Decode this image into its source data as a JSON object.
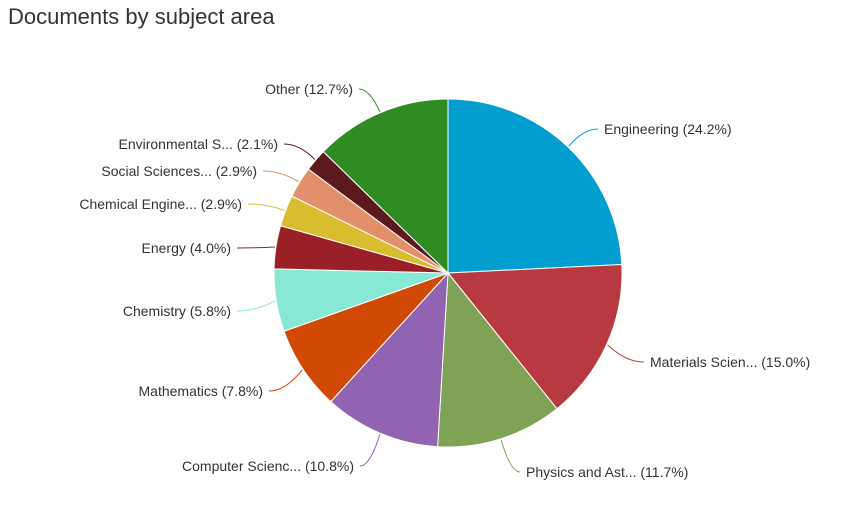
{
  "chart_data": {
    "type": "pie",
    "title": "Documents by subject area",
    "slices": [
      {
        "label": "Engineering (24.2%)",
        "value": 24.2,
        "color": "#009fcf"
      },
      {
        "label": "Materials Scien... (15.0%)",
        "value": 15.0,
        "color": "#b83a40"
      },
      {
        "label": "Physics and Ast... (11.7%)",
        "value": 11.7,
        "color": "#80a257"
      },
      {
        "label": "Computer Scienc... (10.8%)",
        "value": 10.8,
        "color": "#9263b0"
      },
      {
        "label": "Mathematics (7.8%)",
        "value": 7.8,
        "color": "#d04a06"
      },
      {
        "label": "Chemistry (5.8%)",
        "value": 5.8,
        "color": "#87e8d4"
      },
      {
        "label": "Energy (4.0%)",
        "value": 4.0,
        "color": "#9b1f27"
      },
      {
        "label": "Chemical Engine... (2.9%)",
        "value": 2.9,
        "color": "#d8be2f"
      },
      {
        "label": "Social Sciences... (2.9%)",
        "value": 2.9,
        "color": "#e48f6c"
      },
      {
        "label": "Environmental S... (2.1%)",
        "value": 2.1,
        "color": "#5c1a1e"
      },
      {
        "label": "Other (12.7%)",
        "value": 12.7,
        "color": "#2e8c22"
      }
    ]
  }
}
